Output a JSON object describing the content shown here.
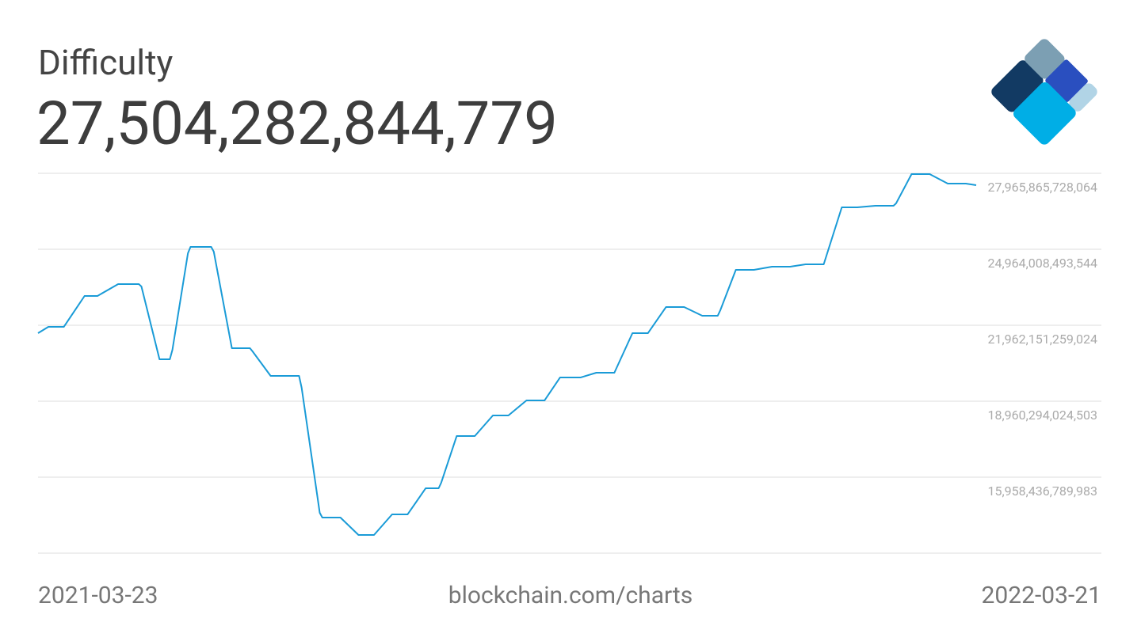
{
  "chart_data": {
    "type": "line",
    "title": "Difficulty",
    "headline": "27,504,282,844,779",
    "source": "blockchain.com/charts",
    "xlim": [
      "2021-03-23",
      "2022-03-21"
    ],
    "x": [
      "2021-03-23",
      "2021-03-27",
      "2021-04-02",
      "2021-04-10",
      "2021-04-15",
      "2021-04-23",
      "2021-05-01",
      "2021-05-02",
      "2021-05-09",
      "2021-05-13",
      "2021-05-14",
      "2021-05-20",
      "2021-05-21",
      "2021-05-29",
      "2021-05-30",
      "2021-06-06",
      "2021-06-13",
      "2021-06-14",
      "2021-06-21",
      "2021-07-02",
      "2021-07-03",
      "2021-07-10",
      "2021-07-11",
      "2021-07-18",
      "2021-07-25",
      "2021-07-31",
      "2021-08-07",
      "2021-08-13",
      "2021-08-20",
      "2021-08-25",
      "2021-08-26",
      "2021-09-01",
      "2021-09-08",
      "2021-09-15",
      "2021-09-21",
      "2021-09-28",
      "2021-10-05",
      "2021-10-11",
      "2021-10-19",
      "2021-10-25",
      "2021-11-01",
      "2021-11-08",
      "2021-11-14",
      "2021-11-21",
      "2021-11-28",
      "2021-12-05",
      "2021-12-11",
      "2021-12-12",
      "2021-12-18",
      "2021-12-25",
      "2022-01-01",
      "2022-01-08",
      "2022-01-14",
      "2022-01-21",
      "2022-01-28",
      "2022-02-03",
      "2022-02-10",
      "2022-02-17",
      "2022-02-18",
      "2022-02-24",
      "2022-03-03",
      "2022-03-10",
      "2022-03-17",
      "2022-03-21"
    ],
    "series": [
      {
        "name": "Difficulty",
        "color": "#1a9bd7",
        "values": [
          21650000000000,
          21900000000000,
          21900000000000,
          23119000000000,
          23119000000000,
          23588000000000,
          23588000000000,
          23495000000000,
          20618000000000,
          20618000000000,
          20993000000000,
          24808000000000,
          25058000000000,
          25058000000000,
          24870000000000,
          21056000000000,
          21056000000000,
          20930000000000,
          19961000000000,
          19961000000000,
          19492000000000,
          14552000000000,
          14364000000000,
          14364000000000,
          13676000000000,
          13676000000000,
          14489000000000,
          14489000000000,
          15521000000000,
          15521000000000,
          15740000000000,
          17585000000000,
          17585000000000,
          18398000000000,
          18398000000000,
          18992000000000,
          18992000000000,
          19899000000000,
          19899000000000,
          20086000000000,
          20086000000000,
          21650000000000,
          21650000000000,
          22682000000000,
          22682000000000,
          22338000000000,
          22338000000000,
          22556000000000,
          24151000000000,
          24151000000000,
          24276000000000,
          24276000000000,
          24370000000000,
          24370000000000,
          26621000000000,
          26621000000000,
          26684000000000,
          26684000000000,
          26778000000000,
          27935000000000,
          27935000000000,
          27559000000000,
          27559000000000,
          27497000000000
        ]
      }
    ],
    "ylim": [
      12956579555463,
      27965865728064
    ],
    "yticks": [
      {
        "value": 15958436789983,
        "label": "15,958,436,789,983"
      },
      {
        "value": 18960294024503,
        "label": "18,960,294,024,503"
      },
      {
        "value": 21962151259024,
        "label": "21,962,151,259,024"
      },
      {
        "value": 24964008493544,
        "label": "24,964,008,493,544"
      },
      {
        "value": 27965865728064,
        "label": "27,965,865,728,064"
      }
    ],
    "grid": true
  }
}
